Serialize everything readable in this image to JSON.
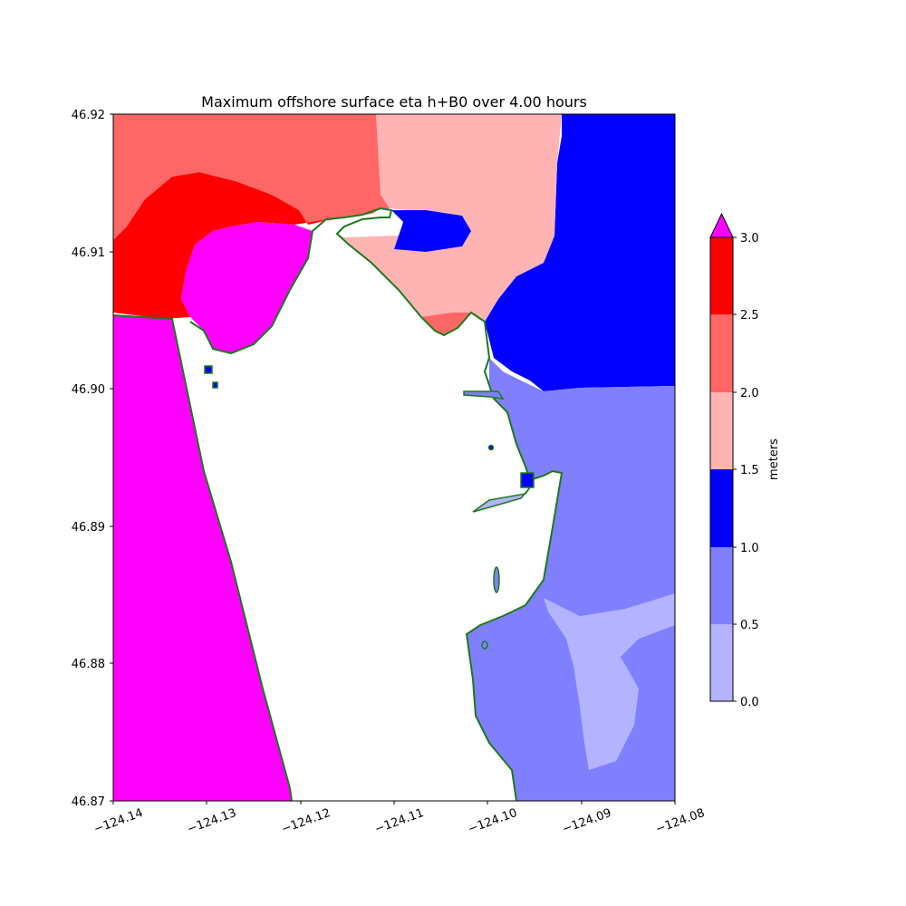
{
  "title": "Maximum offshore surface eta h+B0 over 4.00 hours",
  "x_ticks": [
    "−124.14",
    "−124.13",
    "−124.12",
    "−124.11",
    "−124.10",
    "−124.09",
    "−124.08"
  ],
  "y_ticks": [
    "46.92",
    "46.91",
    "46.90",
    "46.89",
    "46.88",
    "46.87"
  ],
  "colorbar": {
    "label": "meters",
    "ticks": [
      "3.0",
      "2.5",
      "2.0",
      "1.5",
      "1.0",
      "0.5",
      "0.0"
    ],
    "bins": [
      {
        "range": "0.0-0.5",
        "color": "#b3b3ff"
      },
      {
        "range": "0.5-1.0",
        "color": "#8080ff"
      },
      {
        "range": "1.0-1.5",
        "color": "#0000ff"
      },
      {
        "range": "1.5-2.0",
        "color": "#ffb3b3"
      },
      {
        "range": "2.0-2.5",
        "color": "#ff6666"
      },
      {
        "range": "2.5-3.0",
        "color": "#ff0000"
      },
      {
        "range": ">3.0",
        "color": "#ff00ff"
      }
    ]
  },
  "chart_data": {
    "type": "heatmap",
    "title": "Maximum offshore surface eta h+B0 over 4.00 hours",
    "xlabel": "",
    "ylabel": "",
    "xlim": [
      -124.14,
      -124.08
    ],
    "ylim": [
      46.87,
      46.92
    ],
    "colorbar_label": "meters",
    "colorbar_levels": [
      0.0,
      0.5,
      1.0,
      1.5,
      2.0,
      2.5,
      3.0
    ],
    "colorbar_extend": "max",
    "land_color": "#ffffff",
    "coastline_color": "#1a7a1a",
    "grid": false
  }
}
